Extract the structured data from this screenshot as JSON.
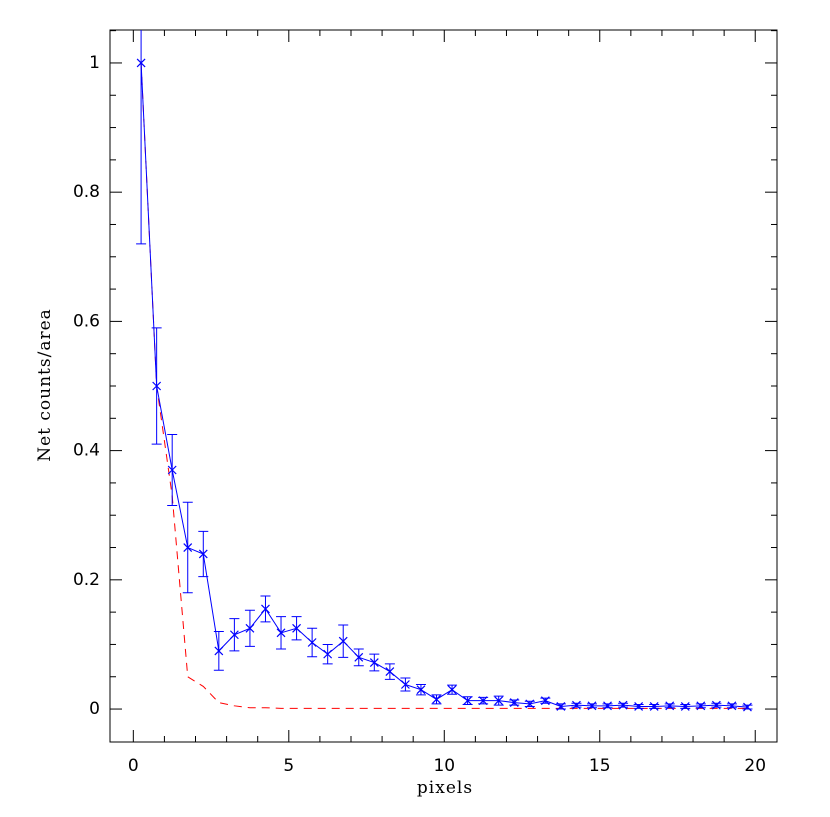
{
  "chart_data": {
    "type": "line",
    "xlabel": "pixels",
    "ylabel": "Net counts/area",
    "x": [
      0.25,
      0.75,
      1.25,
      1.75,
      2.25,
      2.75,
      3.25,
      3.75,
      4.25,
      4.75,
      5.25,
      5.75,
      6.25,
      6.75,
      7.25,
      7.75,
      8.25,
      8.75,
      9.25,
      9.75,
      10.25,
      10.75,
      11.25,
      11.75,
      12.25,
      12.75,
      13.25,
      13.75,
      14.25,
      14.75,
      15.25,
      15.75,
      16.25,
      16.75,
      17.25,
      17.75,
      18.25,
      18.75,
      19.25,
      19.75
    ],
    "series": [
      {
        "color": "#0000ff",
        "marker": "x",
        "dashed": false,
        "values": [
          1.0,
          0.5,
          0.37,
          0.25,
          0.24,
          0.09,
          0.115,
          0.125,
          0.155,
          0.118,
          0.125,
          0.103,
          0.085,
          0.105,
          0.08,
          0.072,
          0.058,
          0.038,
          0.03,
          0.015,
          0.03,
          0.013,
          0.013,
          0.013,
          0.01,
          0.008,
          0.013,
          0.004,
          0.006,
          0.005,
          0.005,
          0.006,
          0.004,
          0.004,
          0.005,
          0.004,
          0.005,
          0.006,
          0.005,
          0.003
        ],
        "errors": [
          0.28,
          0.09,
          0.055,
          0.07,
          0.035,
          0.03,
          0.025,
          0.028,
          0.02,
          0.025,
          0.018,
          0.022,
          0.015,
          0.025,
          0.013,
          0.013,
          0.012,
          0.01,
          0.008,
          0.007,
          0.007,
          0.006,
          0.005,
          0.007,
          0.004,
          0.004,
          0.004,
          0.004,
          0.003,
          0.003,
          0.003,
          0.003,
          0.003,
          0.003,
          0.003,
          0.003,
          0.003,
          0.003,
          0.003,
          0.003
        ]
      },
      {
        "color": "#ff0000",
        "marker": null,
        "dashed": true,
        "values": [
          1.0,
          0.5,
          0.33,
          0.05,
          0.035,
          0.01,
          0.005,
          0.002,
          0.002,
          0.001,
          0.001,
          0.001,
          0.001,
          0.001,
          0.001,
          0.001,
          0.001,
          0.001,
          0.001,
          0.001,
          0.001,
          0.001,
          0.001,
          0.001,
          0.001,
          0.001,
          0.001,
          0.001,
          0.001,
          0.001,
          0.001,
          0.001,
          0.001,
          0.001,
          0.001,
          0.001,
          0.001,
          0.001,
          0.001,
          0.001
        ]
      }
    ],
    "xlim": [
      -0.75,
      20.7
    ],
    "ylim": [
      -0.051,
      1.051
    ],
    "xticks": [
      0,
      5,
      10,
      15,
      20
    ],
    "yticks": [
      0,
      0.2,
      0.4,
      0.6,
      0.8,
      1
    ],
    "xminorticks": [
      1,
      2,
      3,
      4,
      6,
      7,
      8,
      9,
      11,
      12,
      13,
      14,
      16,
      17,
      18,
      19
    ],
    "yminorticks": [
      0.05,
      0.1,
      0.15,
      0.25,
      0.3,
      0.35,
      0.45,
      0.5,
      0.55,
      0.65,
      0.7,
      0.75,
      0.85,
      0.9,
      0.95,
      1.05
    ]
  }
}
